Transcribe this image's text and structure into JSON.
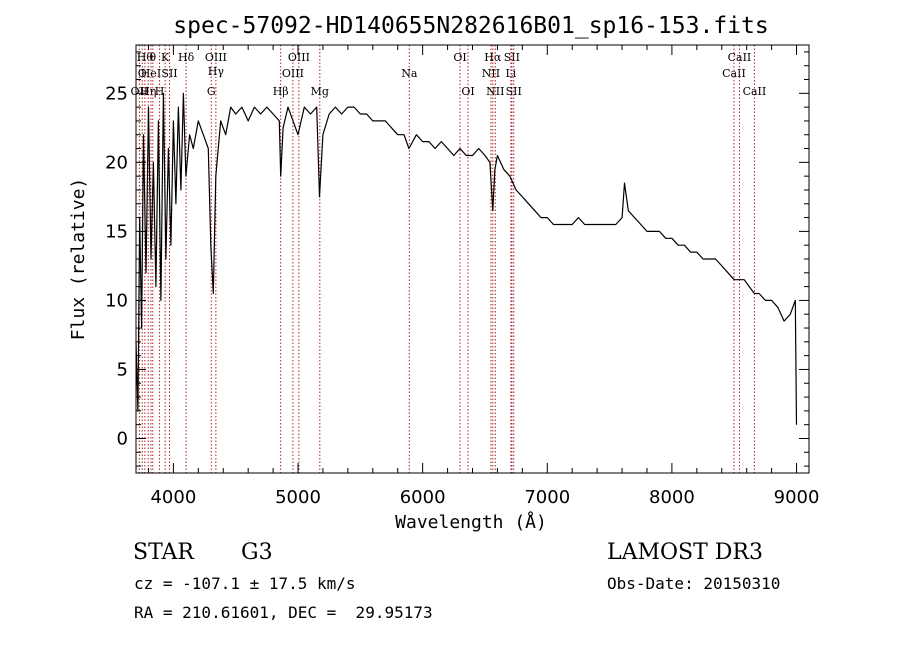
{
  "chart_data": {
    "type": "line",
    "title": "spec-57092-HD140655N282616B01_sp16-153.fits",
    "xlabel": "Wavelength (Å)",
    "ylabel": "Flux (relative)",
    "xlim": [
      3700,
      9100
    ],
    "ylim": [
      -2.5,
      28.5
    ],
    "xticks": [
      4000,
      5000,
      6000,
      7000,
      8000,
      9000
    ],
    "yticks": [
      0,
      5,
      10,
      15,
      20,
      25
    ],
    "grid": false,
    "series": [
      {
        "color": "#000000",
        "x": [
          3700,
          3715,
          3730,
          3745,
          3760,
          3780,
          3800,
          3820,
          3840,
          3860,
          3880,
          3900,
          3920,
          3940,
          3960,
          3980,
          4000,
          4020,
          4040,
          4060,
          4080,
          4100,
          4130,
          4160,
          4200,
          4240,
          4280,
          4300,
          4320,
          4340,
          4380,
          4420,
          4460,
          4500,
          4550,
          4600,
          4650,
          4700,
          4750,
          4800,
          4850,
          4861,
          4880,
          4920,
          4960,
          5000,
          5050,
          5100,
          5150,
          5172,
          5200,
          5250,
          5300,
          5350,
          5400,
          5450,
          5500,
          5550,
          5600,
          5650,
          5700,
          5750,
          5800,
          5850,
          5890,
          5950,
          6000,
          6050,
          6100,
          6150,
          6200,
          6250,
          6300,
          6350,
          6400,
          6450,
          6500,
          6540,
          6563,
          6580,
          6600,
          6650,
          6700,
          6750,
          6800,
          6850,
          6900,
          6950,
          7000,
          7050,
          7100,
          7150,
          7200,
          7250,
          7300,
          7350,
          7400,
          7450,
          7500,
          7550,
          7600,
          7620,
          7650,
          7700,
          7750,
          7800,
          7850,
          7900,
          7950,
          8000,
          8050,
          8100,
          8150,
          8200,
          8250,
          8300,
          8350,
          8400,
          8450,
          8500,
          8542,
          8580,
          8620,
          8662,
          8700,
          8750,
          8800,
          8850,
          8900,
          8950,
          8990,
          9000
        ],
        "y": [
          7,
          2,
          16,
          8,
          22,
          12,
          24,
          13,
          20,
          11,
          23,
          10,
          25,
          13,
          21,
          14,
          23,
          17,
          24,
          18,
          25,
          19,
          22,
          21,
          23,
          22,
          21,
          14,
          10.5,
          19,
          23,
          22,
          24,
          23.5,
          24,
          23,
          24,
          23.5,
          24,
          23.5,
          23,
          19,
          22.5,
          24,
          23,
          22,
          24,
          23.5,
          24,
          17.5,
          22,
          23.5,
          24,
          23.5,
          24,
          24,
          23.5,
          23.5,
          23,
          23,
          23,
          22.5,
          22,
          22,
          21,
          22,
          21.5,
          21.5,
          21,
          21.5,
          21,
          20.5,
          21,
          20.5,
          20.5,
          21,
          20.5,
          20,
          16.5,
          19.5,
          20.5,
          19.5,
          19,
          18,
          17.5,
          17,
          16.5,
          16,
          16,
          15.5,
          15.5,
          15.5,
          15.5,
          16,
          15.5,
          15.5,
          15.5,
          15.5,
          15.5,
          15.5,
          16,
          18.5,
          16.5,
          16,
          15.5,
          15,
          15,
          15,
          14.5,
          14.5,
          14,
          14,
          13.5,
          13.5,
          13,
          13,
          13,
          12.5,
          12,
          11.5,
          11.5,
          11.5,
          11,
          10.5,
          10.5,
          10,
          10,
          9.5,
          8.5,
          9,
          10,
          1
        ]
      }
    ],
    "line_markers": [
      {
        "w": 3727,
        "labels": [
          "OII"
        ],
        "row": 3
      },
      {
        "w": 3750,
        "labels": [
          "O"
        ],
        "row": 2
      },
      {
        "w": 3771,
        "labels": [
          "Hθ"
        ],
        "row": 1
      },
      {
        "w": 3798,
        "labels": [
          "Hη"
        ],
        "row": 3
      },
      {
        "w": 3820,
        "labels": [
          "HeI"
        ],
        "row": 2
      },
      {
        "w": 3835,
        "labels": [
          "θ"
        ],
        "row": 1
      },
      {
        "w": 3889,
        "labels": [
          "H"
        ],
        "row": 3
      },
      {
        "w": 3934,
        "labels": [
          "K"
        ],
        "row": 1
      },
      {
        "w": 3969,
        "labels": [
          "SII"
        ],
        "row": 2
      },
      {
        "w": 4102,
        "labels": [
          "Hδ"
        ],
        "row": 1
      },
      {
        "w": 4304,
        "labels": [
          "G"
        ],
        "row": 3
      },
      {
        "w": 4341,
        "labels": [
          "OIII",
          "Hγ"
        ],
        "row": 1
      },
      {
        "w": 4861,
        "labels": [
          "Hβ"
        ],
        "row": 3
      },
      {
        "w": 4959,
        "labels": [
          "OIII"
        ],
        "row": 2
      },
      {
        "w": 5007,
        "labels": [
          "OIII"
        ],
        "row": 1
      },
      {
        "w": 5175,
        "labels": [
          "Mg"
        ],
        "row": 3
      },
      {
        "w": 5893,
        "labels": [
          "Na"
        ],
        "row": 2
      },
      {
        "w": 6300,
        "labels": [
          "OI"
        ],
        "row": 1
      },
      {
        "w": 6364,
        "labels": [
          "OI"
        ],
        "row": 3
      },
      {
        "w": 6548,
        "labels": [
          "NII"
        ],
        "row": 2
      },
      {
        "w": 6563,
        "labels": [
          "Hα"
        ],
        "row": 1
      },
      {
        "w": 6583,
        "labels": [
          "NII"
        ],
        "row": 3
      },
      {
        "w": 6708,
        "labels": [
          "Li"
        ],
        "row": 2
      },
      {
        "w": 6716,
        "labels": [
          "SII"
        ],
        "row": 1
      },
      {
        "w": 6731,
        "labels": [
          "SII"
        ],
        "row": 3
      },
      {
        "w": 8498,
        "labels": [
          "CaII"
        ],
        "row": 2
      },
      {
        "w": 8542,
        "labels": [
          "CaII"
        ],
        "row": 1
      },
      {
        "w": 8662,
        "labels": [
          "CaII"
        ],
        "row": 3
      }
    ]
  },
  "info": {
    "object_class": "STAR",
    "subclass": "G3",
    "survey": "LAMOST DR3",
    "redshift": "cz = -107.1 ± 17.5 km/s",
    "obs_date": "Obs-Date: 20150310",
    "coords": "RA = 210.61601, DEC =  29.95173"
  }
}
